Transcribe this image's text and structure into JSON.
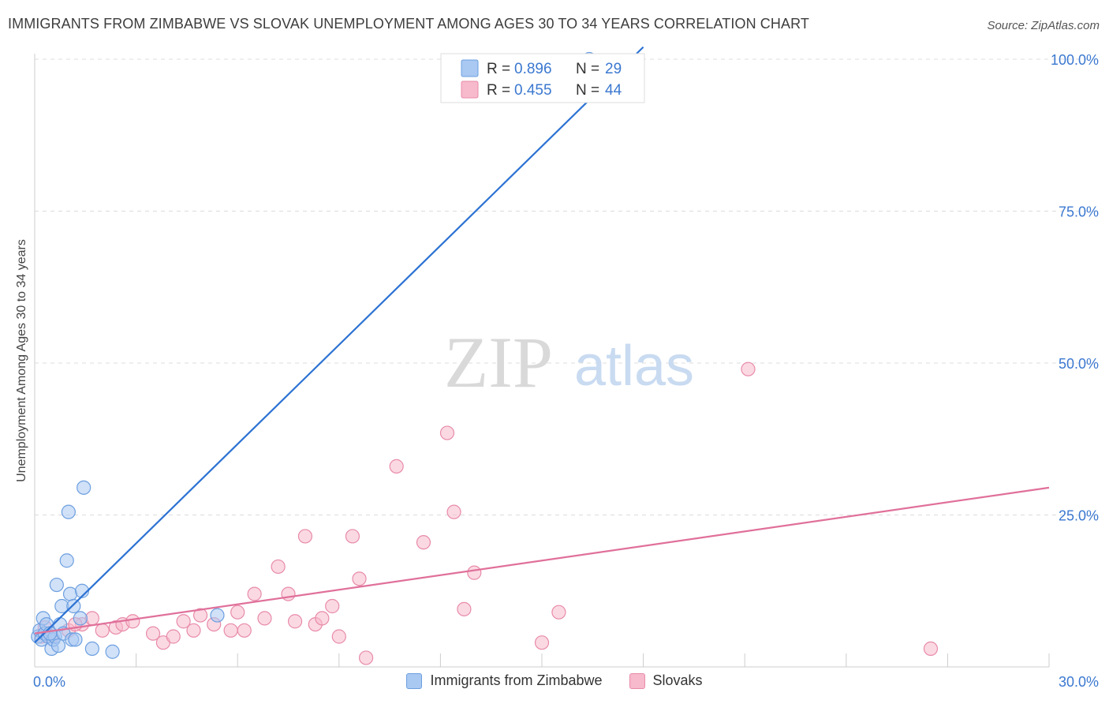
{
  "header": {
    "title": "IMMIGRANTS FROM ZIMBABWE VS SLOVAK UNEMPLOYMENT AMONG AGES 30 TO 34 YEARS CORRELATION CHART",
    "source": "Source: ZipAtlas.com"
  },
  "watermark": {
    "zip": "ZIP",
    "atlas": "atlas"
  },
  "legend_box": {
    "rows": [
      {
        "r_label": "R =",
        "r_value": "0.896",
        "n_label": "N =",
        "n_value": "29"
      },
      {
        "r_label": "R =",
        "r_value": "0.455",
        "n_label": "N =",
        "n_value": "44"
      }
    ]
  },
  "bottom_legend": {
    "items": [
      {
        "label": "Immigrants from Zimbabwe"
      },
      {
        "label": "Slovaks"
      }
    ]
  },
  "colors": {
    "blue_fill": "#a9c8f2",
    "blue_stroke": "#6d9fe0",
    "blue_line": "#2c72d3",
    "pink_fill": "#f7b9cc",
    "pink_stroke": "#e88ba9",
    "pink_line": "#e0709a",
    "value_text": "#3b78d0",
    "grid": "#dcdcdc"
  },
  "chart_data": {
    "type": "scatter",
    "title": "IMMIGRANTS FROM ZIMBABWE VS SLOVAK UNEMPLOYMENT AMONG AGES 30 TO 34 YEARS CORRELATION CHART",
    "xlabel": "",
    "ylabel": "Unemployment Among Ages 30 to 34 years",
    "xlim": [
      0,
      30
    ],
    "ylim": [
      0,
      100
    ],
    "x_ticks": [
      0,
      30
    ],
    "x_tick_labels": [
      "0.0%",
      "30.0%"
    ],
    "y_ticks": [
      25,
      50,
      75,
      100
    ],
    "y_tick_labels": [
      "25.0%",
      "50.0%",
      "75.0%",
      "100.0%"
    ],
    "grid": true,
    "series": [
      {
        "name": "Immigrants from Zimbabwe",
        "R": 0.896,
        "N": 29,
        "points": [
          [
            0.1,
            5.0
          ],
          [
            0.15,
            6.0
          ],
          [
            0.2,
            4.5
          ],
          [
            0.25,
            8.0
          ],
          [
            0.3,
            5.5
          ],
          [
            0.35,
            7.0
          ],
          [
            0.4,
            5.0
          ],
          [
            0.5,
            3.0
          ],
          [
            0.55,
            4.5
          ],
          [
            0.6,
            5.0
          ],
          [
            0.65,
            13.5
          ],
          [
            0.7,
            3.5
          ],
          [
            0.75,
            7.0
          ],
          [
            0.8,
            10.0
          ],
          [
            0.85,
            5.5
          ],
          [
            0.95,
            17.5
          ],
          [
            1.0,
            25.5
          ],
          [
            1.05,
            12.0
          ],
          [
            1.1,
            4.5
          ],
          [
            1.15,
            10.0
          ],
          [
            1.2,
            4.5
          ],
          [
            1.35,
            8.0
          ],
          [
            1.4,
            12.5
          ],
          [
            1.45,
            29.5
          ],
          [
            1.7,
            3.0
          ],
          [
            2.3,
            2.5
          ],
          [
            5.4,
            8.5
          ],
          [
            16.4,
            100.0
          ],
          [
            0.45,
            5.5
          ]
        ],
        "trend": {
          "x": [
            0.0,
            18.0
          ],
          "y": [
            4.0,
            102.0
          ]
        }
      },
      {
        "name": "Slovaks",
        "R": 0.455,
        "N": 44,
        "points": [
          [
            0.2,
            5.0
          ],
          [
            0.3,
            6.5
          ],
          [
            0.5,
            5.0
          ],
          [
            1.0,
            6.0
          ],
          [
            1.4,
            7.0
          ],
          [
            1.7,
            8.0
          ],
          [
            2.0,
            6.0
          ],
          [
            2.4,
            6.5
          ],
          [
            2.6,
            7.0
          ],
          [
            2.9,
            7.5
          ],
          [
            3.5,
            5.5
          ],
          [
            3.8,
            4.0
          ],
          [
            4.1,
            5.0
          ],
          [
            4.4,
            7.5
          ],
          [
            4.7,
            6.0
          ],
          [
            4.9,
            8.5
          ],
          [
            5.3,
            7.0
          ],
          [
            5.8,
            6.0
          ],
          [
            6.0,
            9.0
          ],
          [
            6.2,
            6.0
          ],
          [
            6.5,
            12.0
          ],
          [
            6.8,
            8.0
          ],
          [
            7.2,
            16.5
          ],
          [
            7.5,
            12.0
          ],
          [
            7.7,
            7.5
          ],
          [
            8.0,
            21.5
          ],
          [
            8.3,
            7.0
          ],
          [
            8.5,
            8.0
          ],
          [
            8.8,
            10.0
          ],
          [
            9.0,
            5.0
          ],
          [
            9.4,
            21.5
          ],
          [
            9.6,
            14.5
          ],
          [
            9.8,
            1.5
          ],
          [
            10.7,
            33.0
          ],
          [
            11.5,
            20.5
          ],
          [
            12.2,
            38.5
          ],
          [
            12.4,
            25.5
          ],
          [
            12.7,
            9.5
          ],
          [
            13.0,
            15.5
          ],
          [
            15.0,
            4.0
          ],
          [
            15.5,
            9.0
          ],
          [
            21.1,
            49.0
          ],
          [
            26.5,
            3.0
          ],
          [
            1.2,
            7.0
          ]
        ],
        "trend": {
          "x": [
            0.0,
            30.0
          ],
          "y": [
            5.5,
            29.5
          ]
        }
      }
    ]
  }
}
